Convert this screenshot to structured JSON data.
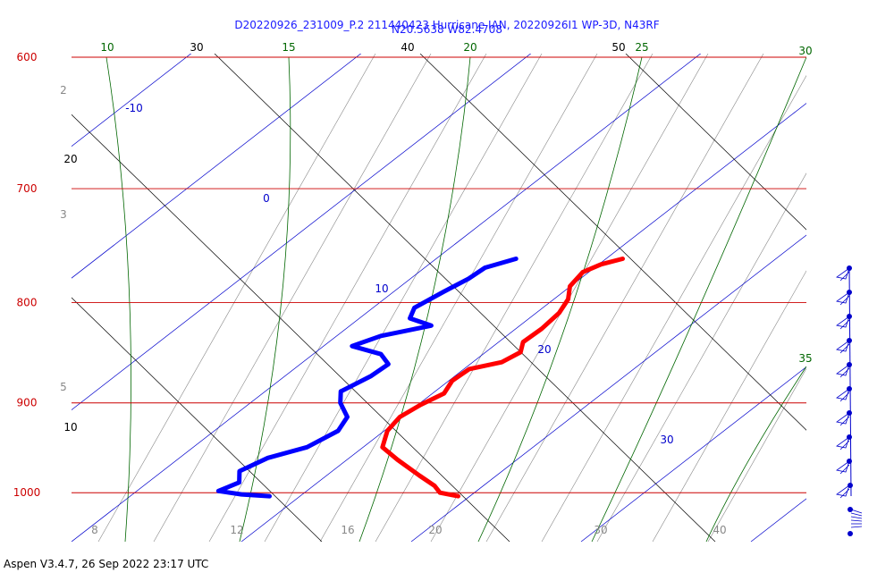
{
  "header": {
    "title_line1": "D20220926_231009_P.2 211440423 Hurricane IAN, 20220926I1 WP-3D, N43RF",
    "title_line2": "N20.5638 W82.4708"
  },
  "footer": {
    "text": "Aspen V3.4.7, 26 Sep 2022  23:17 UTC"
  },
  "colors": {
    "isobar": "#cc0000",
    "isotherm": "#0000cc",
    "dry_adiabat": "#000000",
    "moist_adiabat": "#006600",
    "mixing_ratio": "#888888",
    "temperature": "#ff0000",
    "dewpoint": "#0000ff",
    "wind": "#0000cc"
  },
  "chart_data": {
    "type": "skew-t",
    "title": "D20220926_231009_P.2 211440423 Hurricane IAN, 20220926I1 WP-3D, N43RF",
    "subtitle": "N20.5638 W82.4708",
    "pressure_levels_hPa": [
      600,
      700,
      800,
      900,
      1000
    ],
    "isotherm_labels_C": [
      "-10",
      "0",
      "10",
      "20",
      "30"
    ],
    "dry_adiabat_labels": [
      "30",
      "40",
      "50",
      "20",
      "10"
    ],
    "moist_adiabat_labels": [
      "10",
      "15",
      "20",
      "25",
      "30",
      "35"
    ],
    "mixing_ratio_labels": [
      "2",
      "3",
      "5",
      "8",
      "12",
      "16",
      "20",
      "30",
      "40"
    ],
    "series": [
      {
        "points": [
          {
            "p": 760,
            "t": 17.5
          },
          {
            "p": 765,
            "t": 16.5
          },
          {
            "p": 772,
            "t": 15.8
          },
          {
            "p": 785,
            "t": 15.8
          },
          {
            "p": 797,
            "t": 16.4
          },
          {
            "p": 810,
            "t": 16.6
          },
          {
            "p": 825,
            "t": 16.4
          },
          {
            "p": 838,
            "t": 16.0
          },
          {
            "p": 848,
            "t": 16.4
          },
          {
            "p": 858,
            "t": 15.8
          },
          {
            "p": 865,
            "t": 14.2
          },
          {
            "p": 877,
            "t": 13.8
          },
          {
            "p": 890,
            "t": 14.0
          },
          {
            "p": 902,
            "t": 13.2
          },
          {
            "p": 915,
            "t": 12.6
          },
          {
            "p": 930,
            "t": 12.6
          },
          {
            "p": 948,
            "t": 13.2
          },
          {
            "p": 962,
            "t": 14.8
          },
          {
            "p": 980,
            "t": 17.0
          },
          {
            "p": 992,
            "t": 18.5
          },
          {
            "p": 1000,
            "t": 19.2
          },
          {
            "p": 1004,
            "t": 20.5
          }
        ]
      },
      {
        "points": [
          {
            "p": 760,
            "t": 11.0
          },
          {
            "p": 768,
            "t": 9.6
          },
          {
            "p": 778,
            "t": 9.2
          },
          {
            "p": 790,
            "t": 8.4
          },
          {
            "p": 805,
            "t": 7.5
          },
          {
            "p": 815,
            "t": 7.8
          },
          {
            "p": 822,
            "t": 9.5
          },
          {
            "p": 832,
            "t": 7.0
          },
          {
            "p": 842,
            "t": 5.8
          },
          {
            "p": 850,
            "t": 8.0
          },
          {
            "p": 860,
            "t": 9.0
          },
          {
            "p": 872,
            "t": 8.6
          },
          {
            "p": 888,
            "t": 7.6
          },
          {
            "p": 900,
            "t": 8.2
          },
          {
            "p": 915,
            "t": 9.4
          },
          {
            "p": 930,
            "t": 9.6
          },
          {
            "p": 948,
            "t": 8.6
          },
          {
            "p": 960,
            "t": 6.8
          },
          {
            "p": 975,
            "t": 5.8
          },
          {
            "p": 988,
            "t": 6.4
          },
          {
            "p": 998,
            "t": 5.6
          },
          {
            "p": 1002,
            "t": 7.2
          },
          {
            "p": 1004,
            "t": 9.0
          }
        ]
      }
    ],
    "wind_profile_pressures_hPa": [
      760,
      780,
      800,
      820,
      840,
      860,
      880,
      900,
      920,
      950,
      965,
      975
    ]
  }
}
